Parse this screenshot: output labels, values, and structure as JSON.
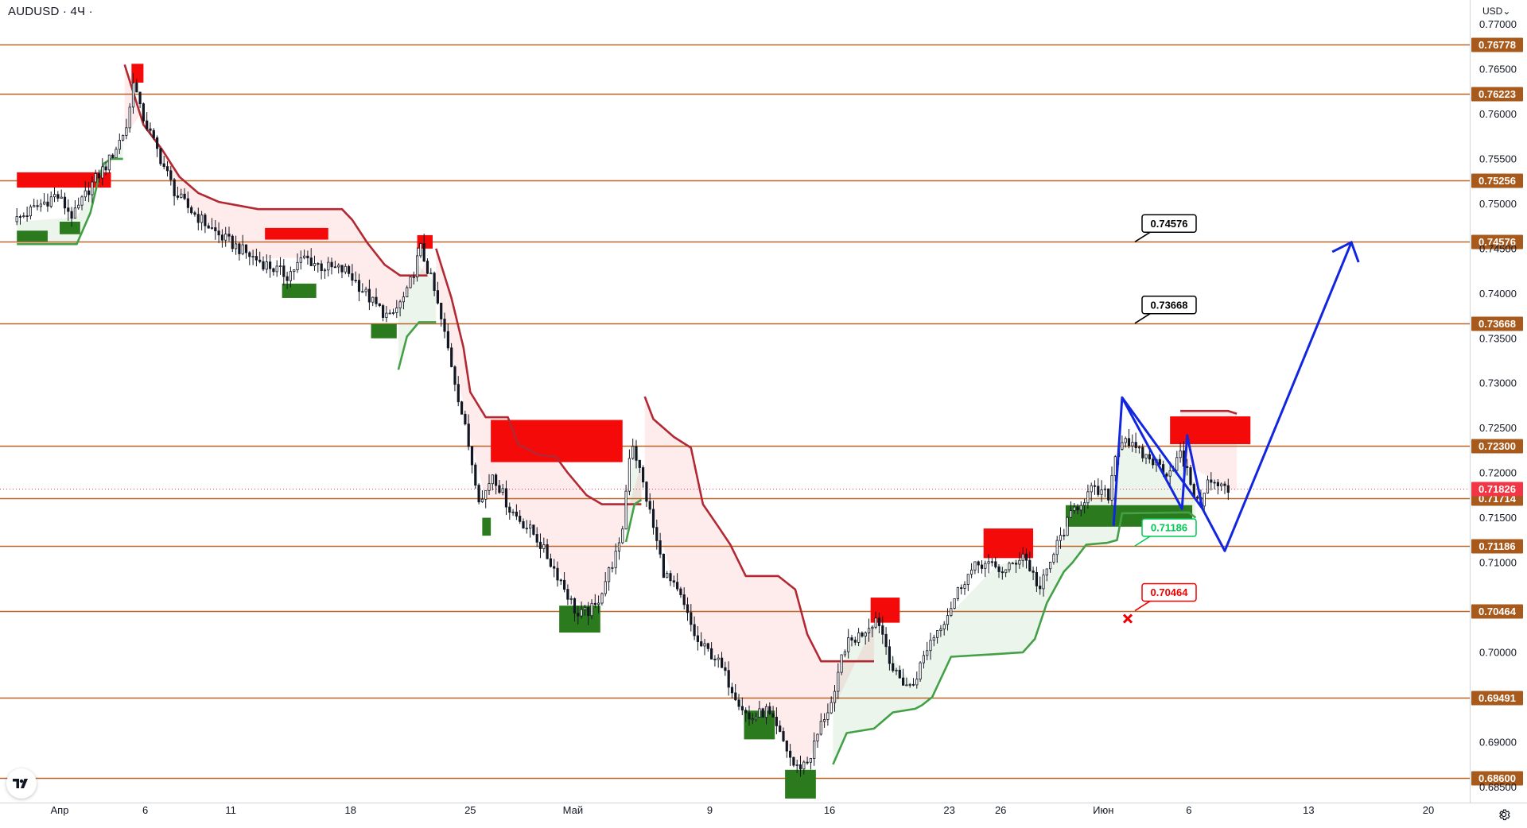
{
  "header": {
    "symbol": "AUDUSD · 4Ч ·",
    "currency": "USD⌄"
  },
  "chart_data": {
    "type": "candlestick",
    "symbol": "AUDUSD",
    "interval": "4Ч",
    "currency": "USD",
    "current_price": 0.71826,
    "y_axis": {
      "range": [
        0.6845,
        0.7705
      ],
      "ticks": [
        "0.77000",
        "0.76500",
        "0.76000",
        "0.75500",
        "0.75000",
        "0.74500",
        "0.74000",
        "0.73500",
        "0.73000",
        "0.72500",
        "0.72000",
        "0.71500",
        "0.71000",
        "0.70000",
        "0.69000",
        "0.68500"
      ]
    },
    "x_axis": {
      "ticks": [
        {
          "label": "Апр",
          "day": 1
        },
        {
          "label": "6",
          "day": 6
        },
        {
          "label": "11",
          "day": 11
        },
        {
          "label": "18",
          "day": 18
        },
        {
          "label": "25",
          "day": 25
        },
        {
          "label": "Май",
          "day": 31
        },
        {
          "label": "9",
          "day": 39
        },
        {
          "label": "16",
          "day": 46
        },
        {
          "label": "23",
          "day": 53
        },
        {
          "label": "26",
          "day": 56
        },
        {
          "label": "Июн",
          "day": 62
        },
        {
          "label": "6",
          "day": 67
        },
        {
          "label": "13",
          "day": 74
        },
        {
          "label": "20",
          "day": 81
        }
      ]
    },
    "levels": [
      {
        "price": 0.76778,
        "label": "0.76778"
      },
      {
        "price": 0.76223,
        "label": "0.76223"
      },
      {
        "price": 0.75256,
        "label": "0.75256"
      },
      {
        "price": 0.74576,
        "label": "0.74576"
      },
      {
        "price": 0.73668,
        "label": "0.73668"
      },
      {
        "price": 0.723,
        "label": "0.72300"
      },
      {
        "price": 0.71714,
        "label": "0.71714"
      },
      {
        "price": 0.71186,
        "label": "0.71186"
      },
      {
        "price": 0.70464,
        "label": "0.70464"
      },
      {
        "price": 0.69491,
        "label": "0.69491"
      },
      {
        "price": 0.686,
        "label": "0.68600"
      }
    ],
    "callouts": [
      {
        "label": "0.74576",
        "price": 0.74576,
        "style": "target",
        "color": "#000000"
      },
      {
        "label": "0.73668",
        "price": 0.73668,
        "style": "target",
        "color": "#000000"
      },
      {
        "label": "0.71186",
        "price": 0.71186,
        "style": "entry",
        "color": "#00c853"
      },
      {
        "label": "0.70464",
        "price": 0.70464,
        "style": "stop",
        "color": "#f00000"
      }
    ],
    "zones": [
      {
        "type": "resistance",
        "day_start": -1.5,
        "day_end": 4.0,
        "top": 0.7535,
        "bottom": 0.7518
      },
      {
        "type": "resistance",
        "day_start": 5.2,
        "day_end": 5.9,
        "top": 0.7656,
        "bottom": 0.7635
      },
      {
        "type": "resistance",
        "day_start": 13.0,
        "day_end": 16.7,
        "top": 0.7473,
        "bottom": 0.746
      },
      {
        "type": "resistance",
        "day_start": 21.9,
        "day_end": 22.8,
        "top": 0.7465,
        "bottom": 0.745
      },
      {
        "type": "resistance",
        "day_start": 26.2,
        "day_end": 33.9,
        "top": 0.7259,
        "bottom": 0.7212
      },
      {
        "type": "resistance",
        "day_start": 48.4,
        "day_end": 50.1,
        "top": 0.7061,
        "bottom": 0.7033
      },
      {
        "type": "resistance",
        "day_start": 55.0,
        "day_end": 57.9,
        "top": 0.7138,
        "bottom": 0.7105
      },
      {
        "type": "resistance",
        "day_start": 65.9,
        "day_end": 70.6,
        "top": 0.7263,
        "bottom": 0.7232
      },
      {
        "type": "support",
        "day_start": -1.5,
        "day_end": 0.3,
        "top": 0.747,
        "bottom": 0.7458
      },
      {
        "type": "support",
        "day_start": 1.0,
        "day_end": 2.2,
        "top": 0.748,
        "bottom": 0.7466
      },
      {
        "type": "support",
        "day_start": 14.0,
        "day_end": 16.0,
        "top": 0.7411,
        "bottom": 0.7395
      },
      {
        "type": "support",
        "day_start": 19.2,
        "day_end": 20.7,
        "top": 0.7366,
        "bottom": 0.735
      },
      {
        "type": "support",
        "day_start": 25.7,
        "day_end": 26.2,
        "top": 0.715,
        "bottom": 0.713
      },
      {
        "type": "support",
        "day_start": 30.2,
        "day_end": 32.6,
        "top": 0.7052,
        "bottom": 0.7022
      },
      {
        "type": "support",
        "day_start": 41.0,
        "day_end": 42.8,
        "top": 0.6935,
        "bottom": 0.6903
      },
      {
        "type": "support",
        "day_start": 43.4,
        "day_end": 45.2,
        "top": 0.6869,
        "bottom": 0.6837
      },
      {
        "type": "support",
        "day_start": 59.8,
        "day_end": 67.2,
        "top": 0.7164,
        "bottom": 0.714
      }
    ],
    "forecast_path": [
      {
        "day": 62.6,
        "price": 0.7141
      },
      {
        "day": 63.1,
        "price": 0.7284
      },
      {
        "day": 66.6,
        "price": 0.716
      },
      {
        "day": 66.9,
        "price": 0.7242
      },
      {
        "day": 67.8,
        "price": 0.716
      },
      {
        "day": 69.1,
        "price": 0.7113
      },
      {
        "day": 76.5,
        "price": 0.7457
      }
    ],
    "pattern_line": [
      {
        "day": 63.1,
        "price": 0.7284
      },
      {
        "day": 67.8,
        "price": 0.716
      }
    ]
  }
}
